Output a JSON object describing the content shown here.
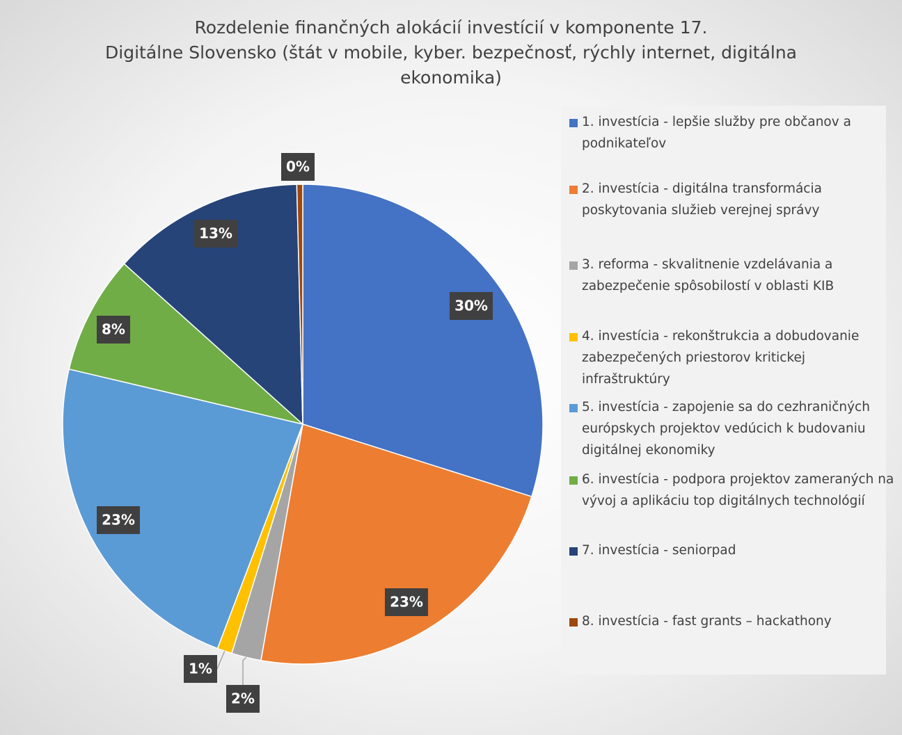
{
  "chart_data": {
    "type": "pie",
    "title": [
      "Rozdelenie finančných alokácií investícií v komponente 17.",
      "Digitálne Slovensko (štát v mobile, kyber. bezpečnosť, rýchly internet, digitálna",
      "ekonomika)"
    ],
    "categories": [
      "1. investícia - lepšie služby pre občanov a podnikateľov",
      "2. investícia - digitálna transformácia poskytovania služieb verejnej správy",
      "3. reforma - skvalitnenie vzdelávania a zabezpečenie spôsobilostí v oblasti KIB",
      "4. investícia - rekonštrukcia a dobudovanie zabezpečených priestorov kritickej infraštruktúry",
      "5. investícia - zapojenie sa do cezhraničných európskych projektov vedúcich k budovaniu digitálnej ekonomiky",
      "6. investícia - podpora projektov zameraných na vývoj a aplikáciu top digitálnych technológií",
      "7. investícia - seniorpad",
      "8. investícia - fast grants – hackathony"
    ],
    "values": [
      30,
      23,
      2,
      1,
      23,
      8,
      13,
      0.4
    ],
    "value_labels": [
      "30%",
      "23%",
      "2%",
      "1%",
      "23%",
      "8%",
      "13%",
      "0%"
    ],
    "colors": [
      "#4472c4",
      "#ed7d31",
      "#a5a5a5",
      "#ffc000",
      "#5b9bd5",
      "#70ad47",
      "#264478",
      "#9e480e"
    ],
    "legend": "right"
  }
}
